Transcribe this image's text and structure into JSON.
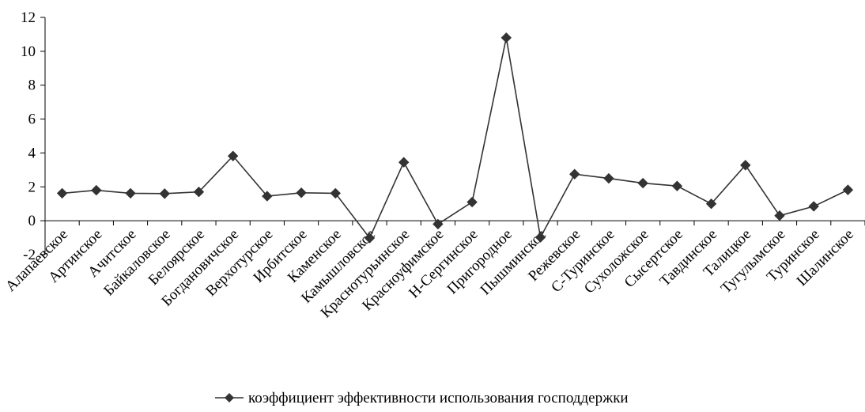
{
  "chart_data": {
    "type": "line",
    "title": "",
    "xlabel": "",
    "ylabel": "",
    "ylim": [
      -2,
      12
    ],
    "yticks": [
      -2,
      0,
      2,
      4,
      6,
      8,
      10,
      12
    ],
    "grid": false,
    "legend_position": "bottom",
    "categories": [
      "Алапаевское",
      "Артинское",
      "Ачитское",
      "Байкаловское",
      "Белоярское",
      "Богдановичское",
      "Верхотурское",
      "Ирбитское",
      "Каменское",
      "Камышловское",
      "Краснотурьинское",
      "Красноуфимское",
      "Н-Сергинское",
      "Пригородное",
      "Пышминское",
      "Режевское",
      "С-Туринское",
      "Сухоложское",
      "Сысертское",
      "Тавдинское",
      "Талицкое",
      "Тугулымское",
      "Туринское",
      "Шалинское"
    ],
    "series": [
      {
        "name": "коэффициент эффективности использования господдержки",
        "color": "#333333",
        "marker": "diamond",
        "values": [
          1.62,
          1.8,
          1.62,
          1.6,
          1.7,
          3.82,
          1.45,
          1.65,
          1.62,
          -1.02,
          3.45,
          -0.2,
          1.1,
          10.8,
          -0.98,
          2.75,
          2.5,
          2.22,
          2.05,
          1.0,
          3.28,
          0.3,
          0.85,
          1.82
        ]
      }
    ]
  }
}
